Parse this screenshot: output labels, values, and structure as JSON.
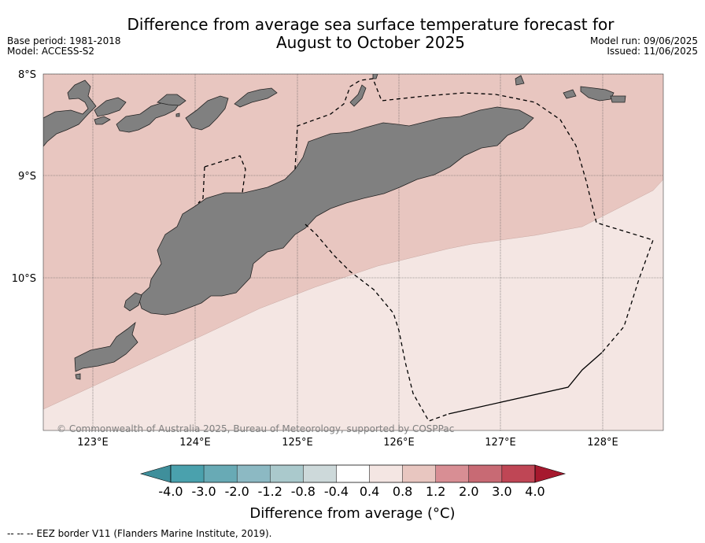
{
  "title": {
    "line1": "Difference from average sea surface temperature forecast for",
    "line2": "August to October 2025"
  },
  "meta": {
    "base_period": "Base period: 1981-2018",
    "model": "Model: ACCESS-S2",
    "model_run": "Model run: 09/06/2025",
    "issued": "Issued: 11/06/2025"
  },
  "map": {
    "lat_labels": [
      "8°S",
      "9°S",
      "10°S"
    ],
    "lon_labels": [
      "123°E",
      "124°E",
      "125°E",
      "126°E",
      "127°E",
      "128°E"
    ],
    "copyright": "© Commonwealth of Australia 2025, Bureau of Meteorology, supported by COSPPac",
    "colors": {
      "land": "#808080",
      "anomaly_0.8_1.2": "#e8c6c0",
      "anomaly_0.4_0.8": "#f4e6e3"
    }
  },
  "colorbar": {
    "tick_labels": [
      "-4.0",
      "-3.0",
      "-2.0",
      "-1.2",
      "-0.8",
      "-0.4",
      "0.4",
      "0.8",
      "1.2",
      "2.0",
      "3.0",
      "4.0"
    ],
    "colors": [
      "#3f8f9b",
      "#4aa1ad",
      "#68aab5",
      "#8cb9c3",
      "#aac9cc",
      "#cdd9da",
      "#ffffff",
      "#f4e6e3",
      "#e8c6c0",
      "#d88e94",
      "#c86a74",
      "#bf4655",
      "#a6192e"
    ],
    "label": "Difference from average (°C)"
  },
  "footer": "--  --  -- EEZ border V11 (Flanders Marine Institute, 2019)."
}
